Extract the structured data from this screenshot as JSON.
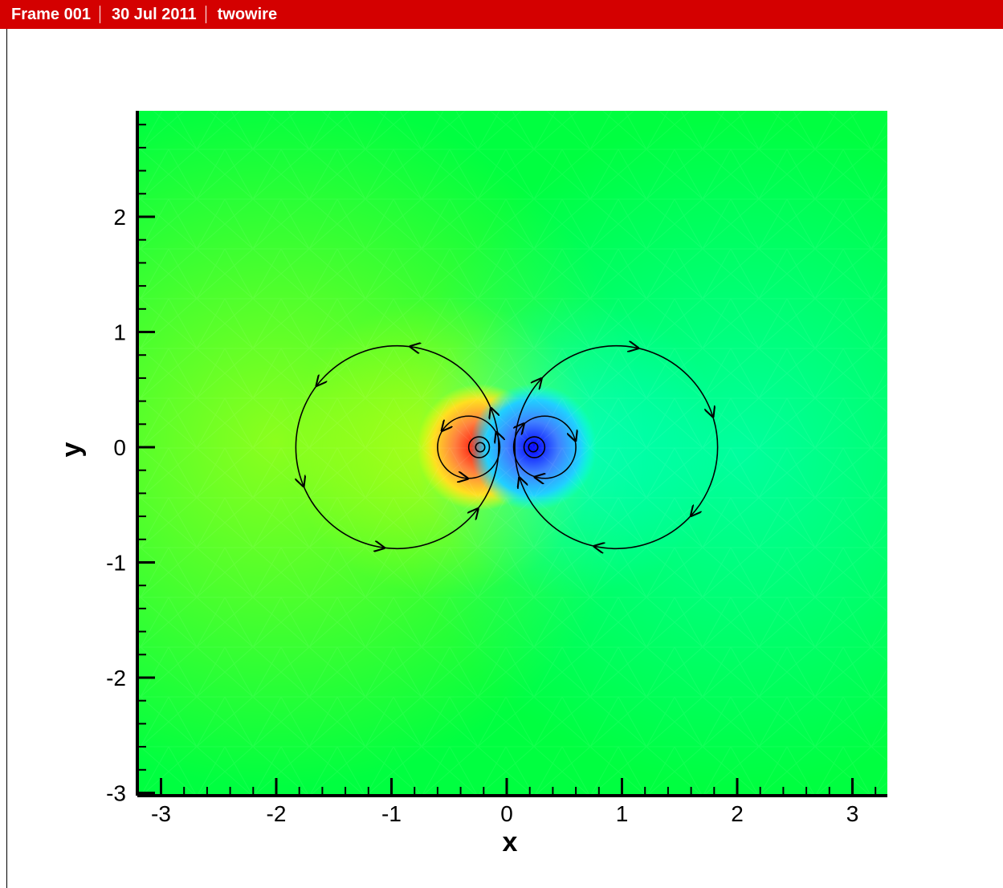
{
  "header": {
    "frame_label": "Frame 001",
    "date": "30 Jul 2011",
    "dataset_name": "twowire",
    "background_color": "#d40000"
  },
  "chart_data": {
    "type": "contour",
    "title": "",
    "xlabel": "x",
    "ylabel": "y",
    "xlim": [
      -3.3,
      3.3
    ],
    "ylim": [
      -3.0,
      2.9
    ],
    "x_ticks": [
      -3,
      -2,
      -1,
      0,
      1,
      2,
      3
    ],
    "y_ticks": [
      -3,
      -2,
      -1,
      0,
      1,
      2
    ],
    "x_tick_labels": [
      "-3",
      "-2",
      "-1",
      "0",
      "1",
      "2",
      "3"
    ],
    "y_tick_labels": [
      "-3",
      "-2",
      "-1",
      "0",
      "1",
      "2"
    ],
    "grid": false,
    "legend": "none",
    "colormap": [
      "#0000ff",
      "#00ffff",
      "#00ff40",
      "#ffff00",
      "#ff0000"
    ],
    "background_color": "#00ff40",
    "sources": [
      {
        "name": "",
        "x": -0.23,
        "y": 0.0,
        "sign": "positive",
        "color": "#ff4000"
      },
      {
        "name": "",
        "x": 0.23,
        "y": 0.0,
        "sign": "negative",
        "color": "#0000ff"
      }
    ],
    "field_lines": [
      {
        "cx": -0.95,
        "cy": 0.0,
        "r": 0.88,
        "direction": "counterclockwise"
      },
      {
        "cx": 0.95,
        "cy": 0.0,
        "r": 0.88,
        "direction": "clockwise"
      },
      {
        "cx": -0.33,
        "cy": 0.0,
        "r": 0.27,
        "direction": "counterclockwise"
      },
      {
        "cx": 0.33,
        "cy": 0.0,
        "r": 0.27,
        "direction": "clockwise"
      },
      {
        "cx": -0.24,
        "cy": 0.0,
        "r": 0.09,
        "direction": "counterclockwise"
      },
      {
        "cx": 0.24,
        "cy": 0.0,
        "r": 0.09,
        "direction": "clockwise"
      },
      {
        "cx": -0.23,
        "cy": 0.0,
        "r": 0.04,
        "direction": "counterclockwise"
      },
      {
        "cx": 0.23,
        "cy": 0.0,
        "r": 0.04,
        "direction": "clockwise"
      }
    ]
  }
}
